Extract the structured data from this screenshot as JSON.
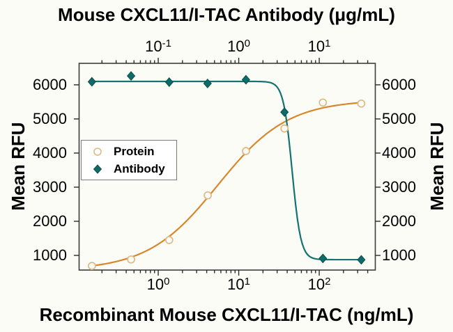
{
  "chart_data": {
    "type": "line",
    "title_top_axis": "Mouse CXCL11/I-TAC Antibody (μg/mL)",
    "title_bottom_axis": "Recombinant Mouse CXCL11/I-TAC (ng/mL)",
    "ylabel": "Mean RFU",
    "x_axis_bottom": {
      "scale": "log",
      "unit": "ng/mL",
      "lim": [
        0.104,
        497
      ],
      "tick_exponents": [
        0,
        1,
        2
      ]
    },
    "x_axis_top": {
      "scale": "log",
      "unit": "μg/mL",
      "lim": [
        0.0104,
        49.7
      ],
      "tick_exponents": [
        -1,
        0,
        1
      ]
    },
    "y_axis": {
      "scale": "linear",
      "lim": [
        570,
        6630
      ],
      "ticks": [
        1000,
        2000,
        3000,
        4000,
        5000,
        6000
      ]
    },
    "series": [
      {
        "name": "Protein",
        "axis": "bottom",
        "marker": "open-circle",
        "line_color": "#D8872B",
        "marker_color": "#DDBA85",
        "x": [
          0.15,
          0.46,
          1.37,
          4.12,
          12.3,
          37,
          111,
          333
        ],
        "y": [
          690,
          880,
          1450,
          2760,
          4060,
          4720,
          5480,
          5450
        ],
        "fit": {
          "type": "4PL",
          "bottom": 560,
          "top": 5560,
          "ec50": 5.5,
          "hill": 1.0
        }
      },
      {
        "name": "Antibody",
        "axis": "top",
        "marker": "filled-diamond",
        "line_color": "#137370",
        "marker_color": "#0E6B67",
        "marker_edge": "#0A4F4C",
        "x": [
          0.015,
          0.046,
          0.137,
          0.41,
          1.23,
          3.7,
          11.1,
          33.3
        ],
        "y": [
          6090,
          6260,
          6080,
          6040,
          6150,
          5200,
          910,
          870
        ],
        "fit": {
          "type": "4PL",
          "bottom": 875,
          "top": 6100,
          "ec50": 4.6,
          "hill": -8
        }
      }
    ],
    "frame_color": "#3C3C3C",
    "tick_color": "#2A2A2A",
    "background": "#FCFCF7",
    "legend_position": "middle-left"
  }
}
